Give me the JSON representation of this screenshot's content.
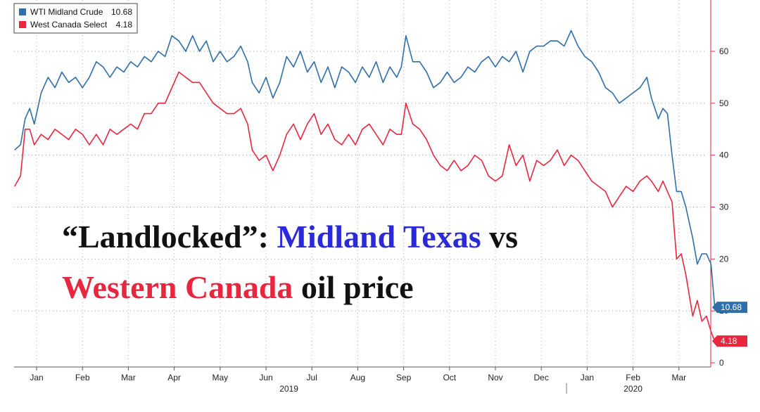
{
  "colors": {
    "wti": "#2f6ea8",
    "wcs": "#e8273f",
    "title_black": "#111111",
    "title_blue": "#2a2ad8",
    "title_red": "#e8273f",
    "axis": "#e8273f"
  },
  "title": {
    "line1": [
      {
        "text": "“Landlocked”: ",
        "color": "black"
      },
      {
        "text": "Midland Texas",
        "color": "blue"
      },
      {
        "text": " vs",
        "color": "black"
      }
    ],
    "line2": [
      {
        "text": "Western Canada",
        "color": "red"
      },
      {
        "text": " oil price",
        "color": "black"
      }
    ]
  },
  "chart_data": {
    "type": "line",
    "legend_position": "top-left",
    "grid": true,
    "ylim": [
      0,
      70
    ],
    "yticks": [
      0,
      10,
      20,
      30,
      40,
      50,
      60
    ],
    "x_range": [
      -0.5,
      14.25
    ],
    "months": [
      {
        "label": "Jan",
        "x": 0
      },
      {
        "label": "Feb",
        "x": 1
      },
      {
        "label": "Mar",
        "x": 2
      },
      {
        "label": "Apr",
        "x": 3
      },
      {
        "label": "May",
        "x": 4
      },
      {
        "label": "Jun",
        "x": 5
      },
      {
        "label": "Jul",
        "x": 6
      },
      {
        "label": "Aug",
        "x": 7
      },
      {
        "label": "Sep",
        "x": 8
      },
      {
        "label": "Oct",
        "x": 9
      },
      {
        "label": "Nov",
        "x": 10
      },
      {
        "label": "Dec",
        "x": 11
      },
      {
        "label": "Jan",
        "x": 12
      },
      {
        "label": "Feb",
        "x": 13
      },
      {
        "label": "Mar",
        "x": 14
      }
    ],
    "years": [
      {
        "label": "2019",
        "x": 5.5
      },
      {
        "label": "2020",
        "x": 13
      }
    ],
    "year_divider_x": 11.55,
    "series": [
      {
        "name": "WTI Midland Crude",
        "last_label": "10.68",
        "color_key": "wti",
        "points": [
          [
            -0.48,
            41
          ],
          [
            -0.35,
            42
          ],
          [
            -0.25,
            47
          ],
          [
            -0.15,
            49
          ],
          [
            -0.05,
            46
          ],
          [
            0.1,
            52
          ],
          [
            0.25,
            55
          ],
          [
            0.4,
            53
          ],
          [
            0.55,
            56
          ],
          [
            0.7,
            54
          ],
          [
            0.85,
            55
          ],
          [
            1.0,
            53
          ],
          [
            1.15,
            55
          ],
          [
            1.3,
            58
          ],
          [
            1.45,
            57
          ],
          [
            1.6,
            55
          ],
          [
            1.75,
            57
          ],
          [
            1.9,
            56
          ],
          [
            2.05,
            58
          ],
          [
            2.2,
            57
          ],
          [
            2.35,
            59
          ],
          [
            2.5,
            58
          ],
          [
            2.65,
            60
          ],
          [
            2.8,
            59
          ],
          [
            2.95,
            63
          ],
          [
            3.1,
            62
          ],
          [
            3.25,
            60
          ],
          [
            3.4,
            63
          ],
          [
            3.55,
            60
          ],
          [
            3.7,
            62
          ],
          [
            3.85,
            58
          ],
          [
            4.0,
            60
          ],
          [
            4.15,
            58
          ],
          [
            4.3,
            59
          ],
          [
            4.45,
            61
          ],
          [
            4.6,
            58
          ],
          [
            4.7,
            54
          ],
          [
            4.85,
            52
          ],
          [
            5.0,
            55
          ],
          [
            5.15,
            51
          ],
          [
            5.3,
            54
          ],
          [
            5.45,
            59
          ],
          [
            5.6,
            57
          ],
          [
            5.75,
            60
          ],
          [
            5.9,
            56
          ],
          [
            6.05,
            58
          ],
          [
            6.2,
            54
          ],
          [
            6.35,
            57
          ],
          [
            6.5,
            53
          ],
          [
            6.65,
            57
          ],
          [
            6.8,
            56
          ],
          [
            6.95,
            54
          ],
          [
            7.1,
            57
          ],
          [
            7.25,
            55
          ],
          [
            7.4,
            58
          ],
          [
            7.55,
            54
          ],
          [
            7.7,
            57
          ],
          [
            7.85,
            55
          ],
          [
            7.95,
            57
          ],
          [
            8.05,
            63
          ],
          [
            8.2,
            58
          ],
          [
            8.35,
            58
          ],
          [
            8.5,
            56
          ],
          [
            8.65,
            53
          ],
          [
            8.8,
            54
          ],
          [
            8.95,
            56
          ],
          [
            9.1,
            54
          ],
          [
            9.25,
            55
          ],
          [
            9.4,
            57
          ],
          [
            9.55,
            56
          ],
          [
            9.7,
            58
          ],
          [
            9.85,
            59
          ],
          [
            10.0,
            57
          ],
          [
            10.15,
            59
          ],
          [
            10.3,
            58
          ],
          [
            10.45,
            60
          ],
          [
            10.6,
            56
          ],
          [
            10.75,
            60
          ],
          [
            10.9,
            61
          ],
          [
            11.05,
            61
          ],
          [
            11.2,
            62
          ],
          [
            11.35,
            62
          ],
          [
            11.5,
            61
          ],
          [
            11.65,
            64
          ],
          [
            11.8,
            61
          ],
          [
            11.95,
            59
          ],
          [
            12.1,
            58
          ],
          [
            12.25,
            56
          ],
          [
            12.4,
            53
          ],
          [
            12.55,
            52
          ],
          [
            12.7,
            50
          ],
          [
            12.85,
            51
          ],
          [
            13.0,
            52
          ],
          [
            13.15,
            53
          ],
          [
            13.3,
            55
          ],
          [
            13.4,
            51
          ],
          [
            13.55,
            47
          ],
          [
            13.65,
            49
          ],
          [
            13.75,
            48
          ],
          [
            13.85,
            40
          ],
          [
            13.95,
            33
          ],
          [
            14.05,
            33
          ],
          [
            14.15,
            30
          ],
          [
            14.3,
            24
          ],
          [
            14.4,
            19
          ],
          [
            14.5,
            21
          ],
          [
            14.6,
            21
          ],
          [
            14.7,
            19
          ],
          [
            14.78,
            10.68
          ]
        ]
      },
      {
        "name": "West Canada Select",
        "last_label": "4.18",
        "color_key": "wcs",
        "points": [
          [
            -0.48,
            34
          ],
          [
            -0.35,
            36
          ],
          [
            -0.25,
            45
          ],
          [
            -0.15,
            45
          ],
          [
            -0.05,
            42
          ],
          [
            0.1,
            44
          ],
          [
            0.25,
            43
          ],
          [
            0.4,
            45
          ],
          [
            0.55,
            44
          ],
          [
            0.7,
            43
          ],
          [
            0.85,
            45
          ],
          [
            1.0,
            44
          ],
          [
            1.15,
            42
          ],
          [
            1.3,
            44
          ],
          [
            1.45,
            42
          ],
          [
            1.6,
            45
          ],
          [
            1.75,
            44
          ],
          [
            1.9,
            45
          ],
          [
            2.05,
            46
          ],
          [
            2.2,
            45
          ],
          [
            2.35,
            48
          ],
          [
            2.5,
            48
          ],
          [
            2.65,
            50
          ],
          [
            2.8,
            50
          ],
          [
            2.95,
            53
          ],
          [
            3.1,
            56
          ],
          [
            3.25,
            55
          ],
          [
            3.4,
            54
          ],
          [
            3.55,
            54
          ],
          [
            3.7,
            52
          ],
          [
            3.85,
            50
          ],
          [
            4.0,
            49
          ],
          [
            4.15,
            48
          ],
          [
            4.3,
            48
          ],
          [
            4.45,
            49
          ],
          [
            4.6,
            46
          ],
          [
            4.7,
            41
          ],
          [
            4.85,
            39
          ],
          [
            5.0,
            40
          ],
          [
            5.15,
            37
          ],
          [
            5.3,
            40
          ],
          [
            5.45,
            44
          ],
          [
            5.6,
            46
          ],
          [
            5.75,
            43
          ],
          [
            5.9,
            46
          ],
          [
            6.05,
            48
          ],
          [
            6.2,
            44
          ],
          [
            6.35,
            46
          ],
          [
            6.5,
            43
          ],
          [
            6.65,
            42
          ],
          [
            6.8,
            44
          ],
          [
            6.95,
            42
          ],
          [
            7.1,
            45
          ],
          [
            7.25,
            46
          ],
          [
            7.4,
            44
          ],
          [
            7.55,
            42
          ],
          [
            7.7,
            45
          ],
          [
            7.85,
            44
          ],
          [
            7.95,
            44
          ],
          [
            8.05,
            50
          ],
          [
            8.2,
            46
          ],
          [
            8.35,
            45
          ],
          [
            8.5,
            43
          ],
          [
            8.65,
            40
          ],
          [
            8.8,
            38
          ],
          [
            8.95,
            37
          ],
          [
            9.1,
            39
          ],
          [
            9.25,
            37
          ],
          [
            9.4,
            38
          ],
          [
            9.55,
            40
          ],
          [
            9.7,
            39
          ],
          [
            9.85,
            36
          ],
          [
            10.0,
            35
          ],
          [
            10.15,
            36
          ],
          [
            10.3,
            42
          ],
          [
            10.45,
            38
          ],
          [
            10.6,
            40
          ],
          [
            10.75,
            35
          ],
          [
            10.9,
            39
          ],
          [
            11.05,
            38
          ],
          [
            11.2,
            39
          ],
          [
            11.35,
            41
          ],
          [
            11.5,
            38
          ],
          [
            11.65,
            40
          ],
          [
            11.8,
            39
          ],
          [
            11.95,
            37
          ],
          [
            12.1,
            35
          ],
          [
            12.25,
            34
          ],
          [
            12.4,
            33
          ],
          [
            12.55,
            30
          ],
          [
            12.7,
            32
          ],
          [
            12.85,
            34
          ],
          [
            13.0,
            33
          ],
          [
            13.15,
            35
          ],
          [
            13.3,
            36
          ],
          [
            13.4,
            35
          ],
          [
            13.55,
            33
          ],
          [
            13.65,
            35
          ],
          [
            13.75,
            33
          ],
          [
            13.85,
            31
          ],
          [
            13.95,
            20
          ],
          [
            14.05,
            21
          ],
          [
            14.15,
            17
          ],
          [
            14.3,
            9
          ],
          [
            14.4,
            12
          ],
          [
            14.5,
            8
          ],
          [
            14.6,
            9
          ],
          [
            14.7,
            6
          ],
          [
            14.78,
            4.18
          ]
        ]
      }
    ]
  }
}
